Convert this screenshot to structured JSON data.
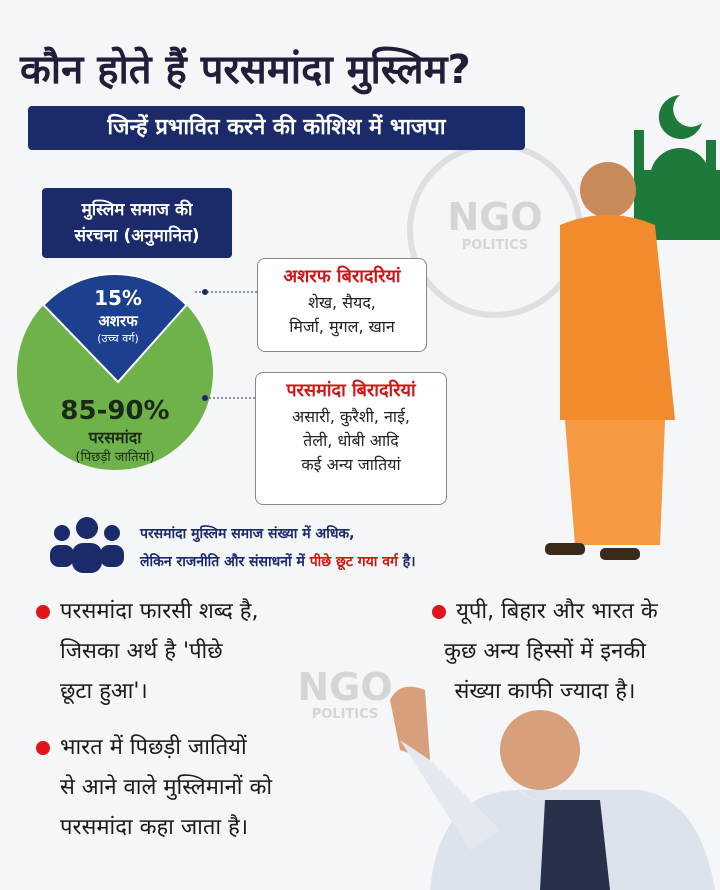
{
  "header": {
    "title": "कौन होते हैं परसमांदा मुस्लिम?",
    "subtitle": "जिन्हें प्रभावित करने की कोशिश में भाजपा"
  },
  "composition": {
    "title_lines": [
      "मुस्लिम समाज की",
      "संरचना (अनुमानित)"
    ],
    "segments": [
      {
        "value": "15%",
        "label": "अशरफ",
        "note": "(उच्च वर्ग)"
      },
      {
        "value": "85-90%",
        "label": "परसमांदा",
        "note": "(पिछड़ी जातियां)"
      }
    ],
    "groups": [
      {
        "title": "अशरफ बिरादरियां",
        "lines": [
          "शेख, सैयद,",
          "मिर्जा, मुगल, खान"
        ]
      },
      {
        "title": "परसमांदा बिरादरियां",
        "lines": [
          "असारी, कुरैशी, नाई,",
          "तेली, धोबी आदि",
          "कई अन्य जातियां"
        ]
      }
    ]
  },
  "note": {
    "line1": "परसमांदा मुस्लिम समाज संख्या में अधिक,",
    "line2_start": "लेकिन राजनीति और संसाधनों में",
    "line2_highlight": "पीछे छूट गया वर्ग",
    "line2_end": "है।"
  },
  "bullets": [
    {
      "lines": [
        "परसमांदा फारसी शब्द है,",
        "जिसका अर्थ है 'पीछे",
        "छूटा हुआ'।"
      ]
    },
    {
      "lines": [
        "भारत में पिछड़ी जातियों",
        "से आने वाले मुस्लिमानों को",
        "परसमांदा कहा जाता है।"
      ]
    },
    {
      "lines": [
        "यूपी, बिहार और भारत के",
        "कुछ अन्य हिस्सों में इनकी",
        "संख्या काफी ज्यादा है।"
      ]
    }
  ],
  "watermark": {
    "name": "NGO",
    "tagline": "POLITICS"
  }
}
